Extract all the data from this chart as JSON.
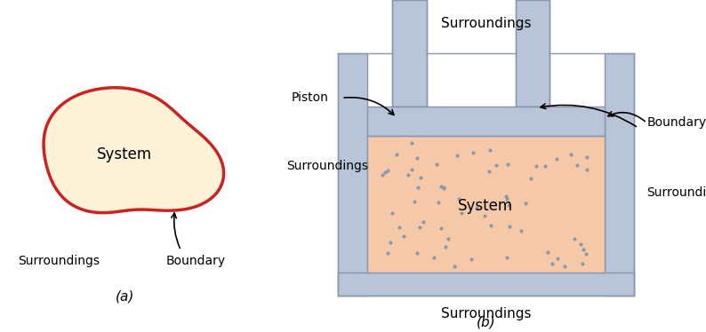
{
  "fig_width": 7.94,
  "fig_height": 3.74,
  "background_color": "#ffffff",
  "blob_fill": "#fef3d8",
  "blob_edge": "#cc2222",
  "blob_lw": 2.5,
  "system_label_a": "System",
  "surroundings_label_a": "Surroundings",
  "boundary_label_a": "Boundary",
  "subfig_a_label": "(a)",
  "cylinder_fill": "#b8c4d8",
  "cylinder_edge": "#8a96b0",
  "gas_fill": "#f5c9a8",
  "dot_color": "#8899aa",
  "system_label_b": "System",
  "surroundings_top": "Surroundings",
  "surroundings_left": "Surroundings",
  "surroundings_right": "Surroundings",
  "surroundings_bottom": "Surroundings",
  "piston_label": "Piston",
  "boundary_label_b": "Boundary",
  "subfig_b_label": "(b)"
}
